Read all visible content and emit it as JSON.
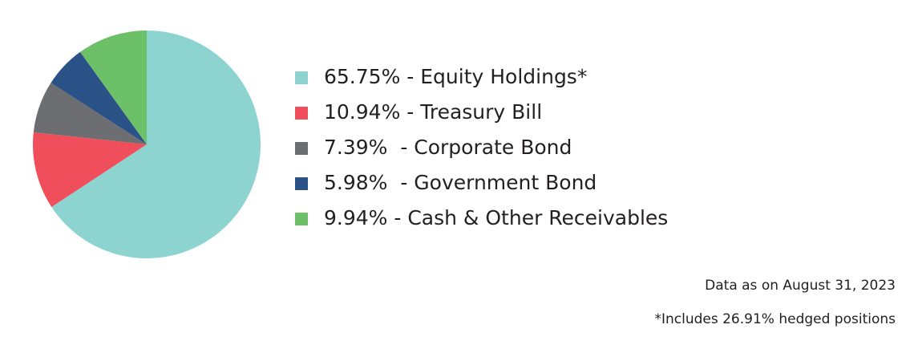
{
  "chart_data": {
    "type": "pie",
    "categories": [
      "65.75% - Equity Holdings*",
      "10.94% - Treasury Bill",
      "7.39%  - Corporate Bond",
      "5.98%  - Government Bond",
      "9.94% - Cash & Other Receivables"
    ],
    "values": [
      65.75,
      10.94,
      7.39,
      5.98,
      9.94
    ],
    "colors": [
      "#8dd4d1",
      "#f04e5a",
      "#6d6e71",
      "#2b5287",
      "#6cc168"
    ],
    "notes": [
      "Data as on August 31, 2023",
      "*Includes 26.91% hedged positions"
    ]
  }
}
